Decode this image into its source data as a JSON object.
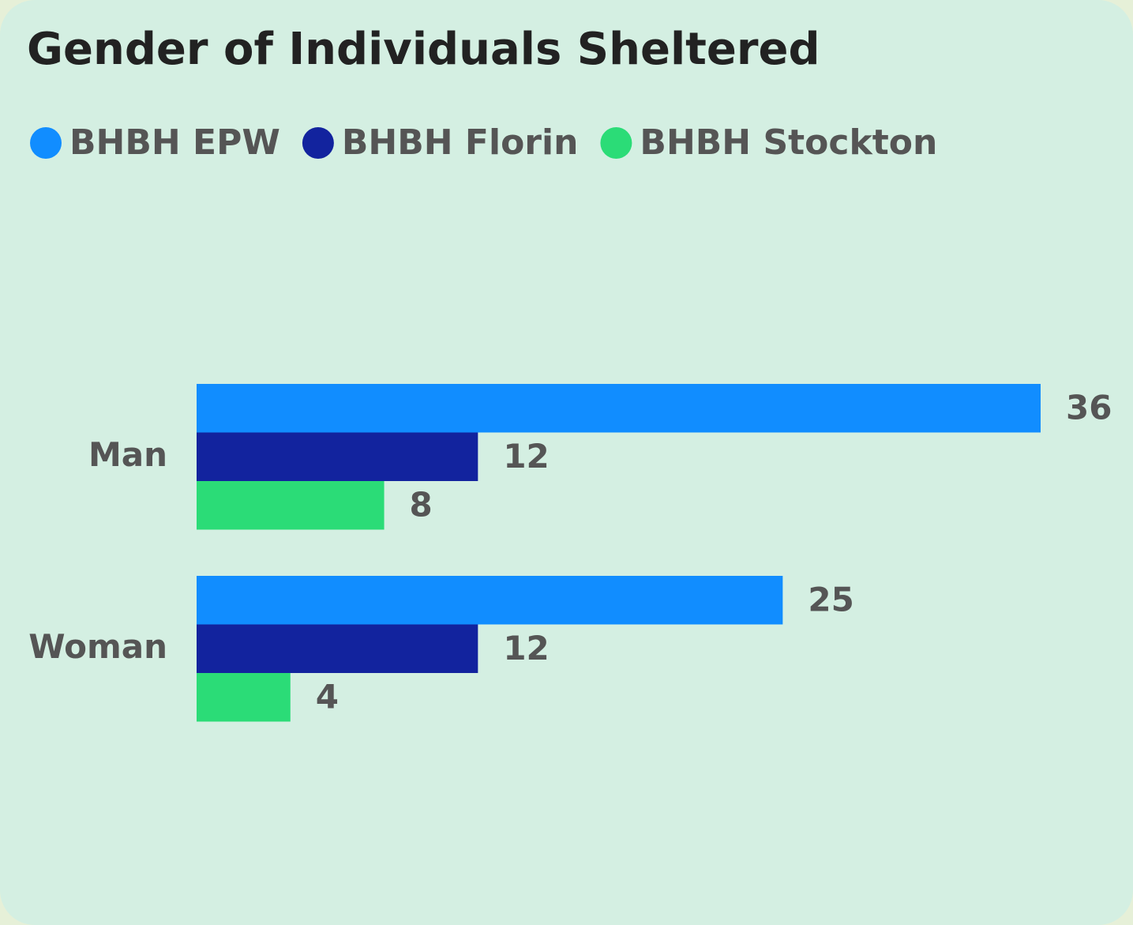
{
  "chart_data": {
    "type": "hbar",
    "title": "Gender of Individuals Sheltered",
    "categories": [
      "Man",
      "Woman"
    ],
    "series": [
      {
        "name": "BHBH EPW",
        "color": "#118dff",
        "values": [
          36,
          25
        ]
      },
      {
        "name": "BHBH Florin",
        "color": "#12239e",
        "values": [
          12,
          12
        ]
      },
      {
        "name": "BHBH Stockton",
        "color": "#2bdc77",
        "values": [
          8,
          4
        ]
      }
    ],
    "legend": "top-left"
  }
}
